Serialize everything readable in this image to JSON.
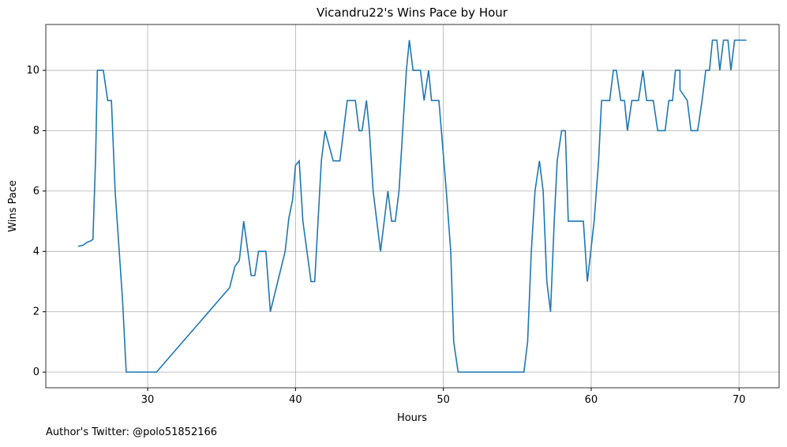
{
  "chart_data": {
    "type": "line",
    "title": "Vicandru22's Wins Pace by Hour",
    "xlabel": "Hours",
    "ylabel": "Wins Pace",
    "footnote": "Author's Twitter: @polo51852166",
    "x": [
      25.3,
      25.62,
      25.9,
      26.16,
      26.3,
      26.48,
      26.6,
      27.0,
      27.3,
      27.55,
      27.8,
      28.3,
      28.55,
      30.6,
      35.55,
      35.9,
      36.2,
      36.5,
      37.0,
      37.25,
      37.5,
      38.0,
      38.3,
      39.3,
      39.55,
      39.8,
      40.0,
      40.25,
      40.5,
      41.05,
      41.3,
      41.75,
      42.0,
      42.55,
      43.0,
      43.25,
      43.5,
      44.05,
      44.3,
      44.5,
      44.8,
      45.0,
      45.25,
      45.75,
      46.0,
      46.25,
      46.5,
      46.75,
      47.0,
      47.25,
      47.5,
      47.7,
      47.95,
      48.45,
      48.7,
      49.0,
      49.2,
      49.7,
      50.2,
      50.5,
      50.7,
      51.0,
      55.45,
      55.7,
      55.95,
      56.2,
      56.5,
      56.75,
      57.0,
      57.25,
      57.5,
      57.7,
      58.0,
      58.25,
      58.45,
      59.47,
      59.74,
      60.2,
      60.5,
      60.7,
      61.25,
      61.5,
      61.7,
      62.0,
      62.25,
      62.45,
      62.75,
      63.2,
      63.5,
      63.75,
      64.2,
      64.5,
      65.0,
      65.25,
      65.5,
      65.7,
      66.0,
      66.01,
      66.5,
      66.75,
      67.2,
      67.5,
      67.75,
      68.0,
      68.2,
      68.5,
      68.7,
      68.95,
      69.25,
      69.45,
      69.7,
      70.5
    ],
    "series": [
      {
        "name": "Wins Pace",
        "color": "#1f77b4",
        "values": [
          4.17,
          4.2,
          4.3,
          4.35,
          4.4,
          7.1,
          10,
          10,
          9,
          9,
          6,
          2.4,
          0,
          0,
          2.8,
          3.5,
          3.7,
          5,
          3.2,
          3.2,
          4,
          4,
          2,
          4,
          5.1,
          5.7,
          6.85,
          7,
          5,
          3,
          3,
          7,
          8,
          7,
          7,
          8,
          9,
          9,
          8,
          8,
          9,
          8,
          6,
          4,
          5,
          6,
          5,
          5,
          6,
          8,
          10,
          11,
          10,
          10,
          9,
          10,
          9,
          9,
          6,
          4,
          1,
          0,
          0,
          1,
          4,
          6,
          7,
          6,
          3,
          2,
          5,
          7,
          8,
          8,
          5,
          5,
          3,
          5,
          7,
          9,
          9,
          10,
          10,
          9,
          9,
          8,
          9,
          9,
          10,
          9,
          9,
          8,
          8,
          9,
          9,
          10,
          10,
          9.35,
          9,
          8,
          8,
          9,
          10,
          10,
          11,
          11,
          10,
          11,
          11,
          10,
          11,
          11
        ]
      }
    ],
    "xlim": [
      23.11,
      72.71
    ],
    "ylim": [
      -0.52,
      11.52
    ],
    "xticks": [
      30,
      40,
      50,
      60,
      70
    ],
    "yticks": [
      0,
      2,
      4,
      6,
      8,
      10
    ],
    "grid": true
  }
}
